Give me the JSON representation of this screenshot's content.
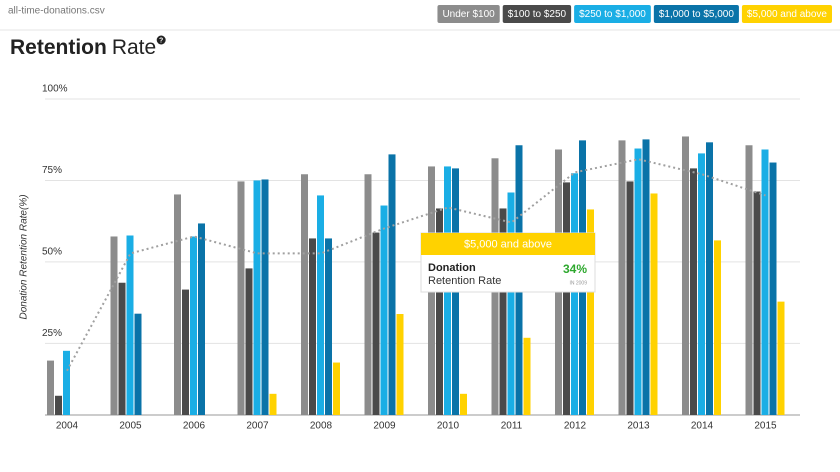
{
  "file_name": "all-time-donations.csv",
  "chart_data": {
    "type": "bar",
    "title_parts": [
      "Retention",
      "Rate"
    ],
    "title_icon": "?",
    "y_label": "Donation Retention Rate(%)",
    "categories": [
      "2004",
      "2005",
      "2006",
      "2007",
      "2008",
      "2009",
      "2010",
      "2011",
      "2012",
      "2013",
      "2014",
      "2015"
    ],
    "series": [
      {
        "name": "Under $100",
        "color": "#8c8c8c",
        "values": [
          19.7,
          57.8,
          70.7,
          74.7,
          76.9,
          76.9,
          79.3,
          81.8,
          84.5,
          87.3,
          88.5,
          85.8
        ]
      },
      {
        "name": "$100 to $250",
        "color": "#4a4a4a",
        "values": [
          8.9,
          43.6,
          41.5,
          48,
          57.2,
          59,
          66.4,
          66.4,
          74.4,
          74.7,
          78.7,
          71.6
        ]
      },
      {
        "name": "$250 to $1,000",
        "color": "#1aaee5",
        "values": [
          22.7,
          58.1,
          57.8,
          75,
          70.4,
          67.3,
          79.3,
          71.3,
          77.2,
          84.8,
          83.3,
          84.5
        ]
      },
      {
        "name": "$1,000 to $5,000",
        "color": "#0a73a8",
        "values": [
          null,
          34.1,
          61.8,
          75.3,
          57.2,
          83,
          78.7,
          85.8,
          87.3,
          87.6,
          86.7,
          80.5
        ]
      },
      {
        "name": "$5,000 and above",
        "color": "#ffd200",
        "values": [
          null,
          null,
          null,
          9.5,
          19.1,
          34,
          9.5,
          26.7,
          66.1,
          71,
          56.6,
          37.8
        ]
      }
    ],
    "trend_line": {
      "color": "#a0a0a0",
      "values": [
        16.6,
        52.6,
        57.8,
        52.6,
        52.6,
        60.3,
        66.7,
        62.1,
        77.5,
        81.5,
        76.9,
        70.4
      ]
    },
    "ylim": [
      3,
      100
    ],
    "yticks": [
      {
        "value": 25,
        "label": "25%"
      },
      {
        "value": 50,
        "label": "50%"
      },
      {
        "value": 75,
        "label": "75%"
      },
      {
        "value": 100,
        "label": "100%"
      }
    ],
    "grid": true,
    "tooltip": {
      "header": "$5,000 and above",
      "line1": "Donation",
      "line2": "Retention Rate",
      "value_label": "34%",
      "note": "IN 2009"
    }
  }
}
